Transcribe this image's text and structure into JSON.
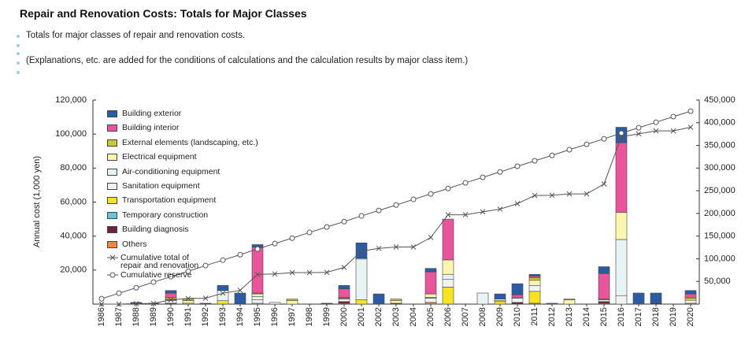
{
  "page": {
    "title": "Repair and Renovation Costs: Totals for Major Classes",
    "notes": [
      "Totals for major classes of repair and renovation costs.",
      "(Explanations, etc. are added for the conditions of calculations and the calculation results by major class item.)"
    ]
  },
  "chart_data": {
    "type": "bar",
    "stacked": true,
    "ylabel": "Annual cost (1,000 yen)",
    "categories": [
      "1986",
      "1987",
      "1988",
      "1989",
      "1990",
      "1991",
      "1992",
      "1993",
      "1994",
      "1995",
      "1996",
      "1997",
      "1998",
      "1999",
      "2000",
      "2001",
      "2002",
      "2003",
      "2004",
      "2005",
      "2006",
      "2007",
      "2008",
      "2009",
      "2010",
      "2011",
      "2012",
      "2013",
      "2014",
      "2015",
      "2016",
      "2017",
      "2018",
      "2019",
      "2020"
    ],
    "ylim": [
      0,
      120000
    ],
    "yticks": [
      {
        "value": 20000,
        "label": "20,000"
      },
      {
        "value": 40000,
        "label": "40,000"
      },
      {
        "value": 60000,
        "label": "60,000"
      },
      {
        "value": 80000,
        "label": "80,000"
      },
      {
        "value": 100000,
        "label": "100,000"
      },
      {
        "value": 120000,
        "label": "120,000"
      }
    ],
    "y2lim": [
      0,
      450000
    ],
    "y2ticks": [
      {
        "value": 50000,
        "label": "50,000"
      },
      {
        "value": 100000,
        "label": "100,000"
      },
      {
        "value": 150000,
        "label": "150,000"
      },
      {
        "value": 200000,
        "label": "200,000"
      },
      {
        "value": 250000,
        "label": "250,000"
      },
      {
        "value": 300000,
        "label": "300,000"
      },
      {
        "value": 350000,
        "label": "350,000"
      },
      {
        "value": 400000,
        "label": "400,000"
      },
      {
        "value": 450000,
        "label": "450,000"
      }
    ],
    "grid": false,
    "legend": "upper left",
    "series": [
      {
        "name": "Building exterior",
        "color": "#2b5ba3",
        "values": [
          0,
          0,
          500,
          0,
          1500,
          0,
          0,
          3000,
          6500,
          1500,
          0,
          0,
          0,
          0,
          2000,
          9000,
          6000,
          0,
          0,
          2000,
          0,
          0,
          0,
          3000,
          6500,
          1000,
          500,
          0,
          0,
          4000,
          9000,
          6500,
          6000,
          0,
          2000
        ]
      },
      {
        "name": "Building interior",
        "color": "#e8559a",
        "values": [
          0,
          0,
          0,
          0,
          2500,
          0,
          0,
          0,
          0,
          27000,
          0,
          0,
          0,
          0,
          5000,
          0,
          0,
          0,
          0,
          13000,
          24000,
          0,
          0,
          0,
          1500,
          1000,
          0,
          0,
          0,
          15000,
          41000,
          0,
          0,
          0,
          2000
        ]
      },
      {
        "name": "External elements (landscaping, etc.)",
        "color": "#c9c83a",
        "values": [
          0,
          0,
          0,
          0,
          1000,
          1000,
          0,
          0,
          0,
          500,
          0,
          1000,
          0,
          0,
          500,
          0,
          0,
          1000,
          0,
          0,
          0,
          0,
          0,
          0,
          0,
          1500,
          0,
          500,
          0,
          500,
          0,
          0,
          0,
          0,
          1000
        ]
      },
      {
        "name": "Electrical equipment",
        "color": "#fbf5b2",
        "values": [
          0,
          0,
          0,
          0,
          500,
          1500,
          0,
          0,
          0,
          1500,
          0,
          2000,
          0,
          0,
          500,
          500,
          0,
          1500,
          0,
          2000,
          8500,
          0,
          0,
          1000,
          0,
          3000,
          0,
          2500,
          0,
          0,
          16000,
          0,
          0,
          0,
          1000
        ]
      },
      {
        "name": "Air-conditioning equipment",
        "color": "#e6f4f3",
        "values": [
          0,
          0,
          0,
          0,
          500,
          0,
          0,
          6000,
          0,
          2000,
          0,
          0,
          0,
          0,
          0,
          24000,
          0,
          0,
          0,
          500,
          3000,
          0,
          6500,
          0,
          500,
          0,
          0,
          0,
          0,
          0,
          33000,
          0,
          0,
          0,
          0
        ]
      },
      {
        "name": "Sanitation equipment",
        "color": "#f2f2f2",
        "values": [
          0,
          0,
          0,
          0,
          1500,
          500,
          0,
          0,
          0,
          2000,
          1000,
          0,
          0,
          0,
          1500,
          0,
          0,
          0,
          0,
          2500,
          4500,
          0,
          0,
          500,
          2500,
          3500,
          0,
          0,
          0,
          1000,
          5000,
          0,
          0,
          0,
          1500
        ]
      },
      {
        "name": "Transportation equipment",
        "color": "#f6e420",
        "values": [
          0,
          0,
          0,
          0,
          0,
          0,
          0,
          2000,
          0,
          500,
          0,
          0,
          0,
          0,
          0,
          2500,
          0,
          0,
          0,
          0,
          10000,
          0,
          0,
          1500,
          0,
          7000,
          0,
          0,
          0,
          0,
          0,
          0,
          0,
          0,
          0
        ]
      },
      {
        "name": "Temporary construction",
        "color": "#6cc3dd",
        "values": [
          0,
          0,
          0,
          0,
          0,
          0,
          0,
          0,
          0,
          0,
          0,
          0,
          0,
          0,
          0,
          0,
          0,
          0,
          0,
          0,
          0,
          0,
          0,
          0,
          0,
          0,
          0,
          0,
          0,
          0,
          0,
          0,
          0,
          0,
          0
        ]
      },
      {
        "name": "Building diagnosis",
        "color": "#6b2142",
        "values": [
          0,
          0,
          500,
          500,
          500,
          0,
          500,
          0,
          0,
          0,
          0,
          0,
          0,
          500,
          1000,
          0,
          0,
          500,
          0,
          0,
          0,
          0,
          0,
          0,
          1000,
          0,
          0,
          0,
          0,
          1000,
          0,
          0,
          500,
          0,
          0
        ]
      },
      {
        "name": "Others",
        "color": "#f0893f",
        "values": [
          0,
          0,
          0,
          0,
          0,
          0,
          0,
          0,
          0,
          0,
          0,
          0,
          0,
          0,
          500,
          0,
          0,
          0,
          0,
          1000,
          0,
          0,
          0,
          0,
          0,
          500,
          0,
          0,
          0,
          500,
          0,
          0,
          0,
          0,
          500
        ]
      },
      {
        "name": "Cumulative total of repair and renovation",
        "type": "line",
        "marker": "x",
        "axis": "y2",
        "color": "#555555",
        "values": [
          0,
          0,
          1000,
          1500,
          9500,
          12500,
          13000,
          24000,
          30500,
          65500,
          66500,
          69500,
          69500,
          70000,
          81000,
          117000,
          123000,
          126000,
          126000,
          147000,
          197000,
          197000,
          203500,
          209500,
          221500,
          239500,
          240000,
          243000,
          243000,
          265000,
          369000,
          375500,
          382000,
          382000,
          390000
        ]
      },
      {
        "name": "Cumulative reserve",
        "type": "line",
        "marker": "o",
        "axis": "y2",
        "color": "#555555",
        "values": [
          12000,
          24000,
          36000,
          48500,
          60500,
          72500,
          85000,
          97000,
          109000,
          121500,
          133500,
          145500,
          158000,
          170000,
          182000,
          194500,
          206500,
          218500,
          231000,
          243000,
          255000,
          267500,
          279500,
          291500,
          304000,
          316000,
          328000,
          340500,
          352500,
          364500,
          377000,
          389000,
          401000,
          413500,
          425500
        ]
      }
    ]
  }
}
